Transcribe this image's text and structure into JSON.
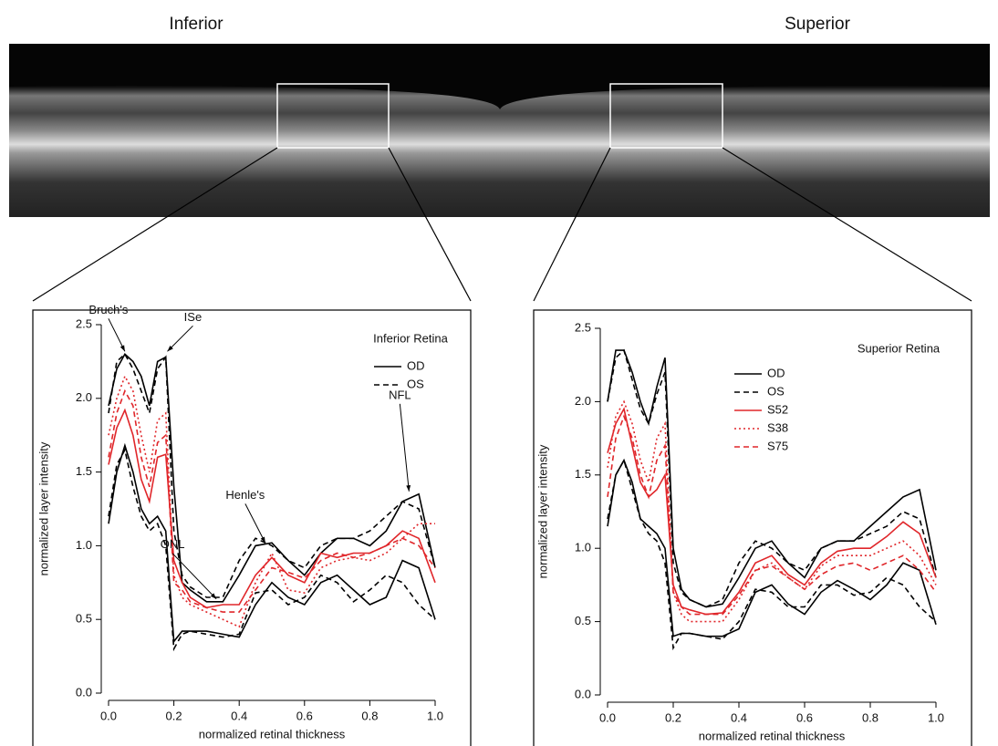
{
  "labels": {
    "left": "Inferior",
    "right": "Superior"
  },
  "chart_data": [
    {
      "type": "line",
      "panel_label": "Inferior Retina",
      "x_label": "normalized retinal thickness",
      "y_label": "normalized layer intensity",
      "x": [
        0,
        0.025,
        0.05,
        0.075,
        0.1,
        0.125,
        0.15,
        0.175,
        0.2,
        0.225,
        0.25,
        0.3,
        0.35,
        0.4,
        0.45,
        0.5,
        0.55,
        0.6,
        0.65,
        0.7,
        0.75,
        0.8,
        0.85,
        0.9,
        0.95,
        1.0
      ],
      "xlim": [
        0,
        1
      ],
      "ylim": [
        0,
        2.5
      ],
      "xticks": [
        {
          "value": 0,
          "label": "0.0"
        },
        0.2,
        0.4,
        0.6,
        0.8,
        {
          "value": 1,
          "label": "1.0"
        }
      ],
      "yticks": [
        {
          "value": 0,
          "label": "0.0"
        },
        0.5,
        {
          "value": 1,
          "label": "1.0"
        },
        1.5,
        {
          "value": 2,
          "label": "2.0"
        },
        2.5
      ],
      "series": [
        {
          "name": "OD",
          "color": "#000000",
          "dash": "solid",
          "values": [
            1.95,
            2.2,
            2.3,
            2.25,
            2.15,
            1.95,
            2.25,
            2.28,
            1.4,
            0.75,
            0.7,
            0.62,
            0.62,
            0.8,
            1.0,
            1.02,
            0.9,
            0.8,
            0.95,
            1.05,
            1.05,
            1.0,
            1.1,
            1.3,
            1.35,
            0.85
          ],
          "lower": [
            1.15,
            1.5,
            1.68,
            1.5,
            1.25,
            1.15,
            1.2,
            1.1,
            0.35,
            0.42,
            0.42,
            0.42,
            0.4,
            0.38,
            0.6,
            0.75,
            0.65,
            0.6,
            0.75,
            0.8,
            0.7,
            0.6,
            0.65,
            0.9,
            0.85,
            0.5
          ]
        },
        {
          "name": "OS",
          "color": "#000000",
          "dash": "dashed",
          "values": [
            1.9,
            2.25,
            2.3,
            2.2,
            2.05,
            1.9,
            2.2,
            2.28,
            1.1,
            0.8,
            0.72,
            0.65,
            0.65,
            0.9,
            1.05,
            1.0,
            0.9,
            0.85,
            1.0,
            1.05,
            1.05,
            1.1,
            1.2,
            1.3,
            1.25,
            0.85
          ],
          "lower": [
            1.2,
            1.55,
            1.65,
            1.4,
            1.2,
            1.1,
            1.15,
            1.0,
            0.3,
            0.4,
            0.42,
            0.4,
            0.38,
            0.4,
            0.68,
            0.7,
            0.6,
            0.65,
            0.8,
            0.75,
            0.62,
            0.7,
            0.8,
            0.75,
            0.6,
            0.5
          ]
        },
        {
          "color": "#e0262a",
          "dash": "solid",
          "values": [
            1.55,
            1.8,
            1.92,
            1.75,
            1.45,
            1.3,
            1.6,
            1.62,
            0.9,
            0.75,
            0.65,
            0.58,
            0.6,
            0.6,
            0.8,
            0.92,
            0.8,
            0.75,
            0.95,
            0.92,
            0.95,
            0.95,
            1.0,
            1.1,
            1.05,
            0.75
          ]
        },
        {
          "color": "#e0262a",
          "dash": "dotted",
          "values": [
            1.75,
            2.0,
            2.15,
            2.05,
            1.75,
            1.5,
            1.85,
            1.9,
            0.8,
            0.65,
            0.6,
            0.55,
            0.5,
            0.45,
            0.75,
            0.95,
            0.7,
            0.68,
            0.85,
            0.9,
            0.92,
            0.9,
            0.95,
            1.05,
            1.15,
            1.15
          ]
        },
        {
          "color": "#e0262a",
          "dash": "dashed",
          "values": [
            1.6,
            1.9,
            2.05,
            1.95,
            1.6,
            1.4,
            1.7,
            1.75,
            0.75,
            0.7,
            0.62,
            0.58,
            0.55,
            0.55,
            0.7,
            0.85,
            0.82,
            0.78,
            0.9,
            0.95,
            0.92,
            0.95,
            1.0,
            1.05,
            1.0,
            0.85
          ]
        }
      ],
      "annotations": [
        {
          "text": "Bruch's",
          "x": 0.05,
          "y": 2.3
        },
        {
          "text": "ISe",
          "x": 0.18,
          "y": 2.3
        },
        {
          "text": "ONL",
          "x": 0.33,
          "y": 0.62
        },
        {
          "text": "Henle's",
          "x": 0.48,
          "y": 1.0
        },
        {
          "text": "NFL",
          "x": 0.92,
          "y": 1.35
        }
      ]
    },
    {
      "type": "line",
      "panel_label": "Superior Retina",
      "x_label": "normalized retinal thickness",
      "y_label": "normalized layer intensity",
      "x": [
        0,
        0.025,
        0.05,
        0.075,
        0.1,
        0.125,
        0.15,
        0.175,
        0.2,
        0.225,
        0.25,
        0.3,
        0.35,
        0.4,
        0.45,
        0.5,
        0.55,
        0.6,
        0.65,
        0.7,
        0.75,
        0.8,
        0.85,
        0.9,
        0.95,
        1.0
      ],
      "xlim": [
        0,
        1
      ],
      "ylim": [
        0,
        2.5
      ],
      "xticks": [
        {
          "value": 0,
          "label": "0.0"
        },
        0.2,
        0.4,
        0.6,
        0.8,
        {
          "value": 1,
          "label": "1.0"
        }
      ],
      "yticks": [
        {
          "value": 0,
          "label": "0.0"
        },
        0.5,
        {
          "value": 1,
          "label": "1.0"
        },
        1.5,
        {
          "value": 2,
          "label": "2.0"
        },
        2.5
      ],
      "series": [
        {
          "name": "OD",
          "color": "#000000",
          "dash": "solid",
          "values": [
            2.0,
            2.35,
            2.35,
            2.2,
            2.0,
            1.85,
            2.1,
            2.3,
            1.0,
            0.72,
            0.65,
            0.6,
            0.62,
            0.8,
            1.0,
            1.05,
            0.9,
            0.8,
            1.0,
            1.05,
            1.05,
            1.15,
            1.25,
            1.35,
            1.4,
            0.85
          ],
          "lower": [
            1.15,
            1.5,
            1.6,
            1.45,
            1.2,
            1.15,
            1.1,
            1.0,
            0.4,
            0.42,
            0.42,
            0.4,
            0.4,
            0.45,
            0.7,
            0.75,
            0.62,
            0.55,
            0.7,
            0.78,
            0.72,
            0.65,
            0.75,
            0.9,
            0.85,
            0.48
          ]
        },
        {
          "name": "OS",
          "color": "#000000",
          "dash": "dashed",
          "values": [
            2.0,
            2.3,
            2.35,
            2.15,
            1.95,
            1.85,
            2.05,
            2.2,
            0.9,
            0.7,
            0.65,
            0.6,
            0.65,
            0.9,
            1.05,
            1.0,
            0.9,
            0.85,
            1.0,
            1.05,
            1.05,
            1.1,
            1.15,
            1.25,
            1.2,
            0.8
          ],
          "lower": [
            1.2,
            1.5,
            1.6,
            1.4,
            1.2,
            1.1,
            1.05,
            0.9,
            0.32,
            0.42,
            0.42,
            0.4,
            0.38,
            0.5,
            0.72,
            0.7,
            0.6,
            0.6,
            0.75,
            0.75,
            0.68,
            0.7,
            0.8,
            0.75,
            0.6,
            0.5
          ]
        },
        {
          "name": "S52",
          "color": "#e0262a",
          "dash": "solid",
          "values": [
            1.65,
            1.85,
            1.95,
            1.7,
            1.45,
            1.35,
            1.4,
            1.5,
            0.75,
            0.6,
            0.58,
            0.55,
            0.56,
            0.7,
            0.9,
            0.95,
            0.82,
            0.75,
            0.9,
            0.98,
            1.0,
            1.0,
            1.08,
            1.18,
            1.1,
            0.8
          ]
        },
        {
          "name": "S38",
          "color": "#e0262a",
          "dash": "dotted",
          "values": [
            1.55,
            1.9,
            2.0,
            1.85,
            1.6,
            1.45,
            1.75,
            1.85,
            0.7,
            0.55,
            0.5,
            0.5,
            0.5,
            0.65,
            0.85,
            0.9,
            0.8,
            0.72,
            0.88,
            0.95,
            0.95,
            0.95,
            1.0,
            1.05,
            0.95,
            0.75
          ]
        },
        {
          "name": "S75",
          "color": "#e0262a",
          "dash": "dashed",
          "values": [
            1.35,
            1.75,
            1.9,
            1.75,
            1.5,
            1.35,
            1.6,
            1.7,
            0.7,
            0.6,
            0.55,
            0.55,
            0.55,
            0.68,
            0.85,
            0.88,
            0.8,
            0.72,
            0.82,
            0.88,
            0.9,
            0.85,
            0.9,
            0.95,
            0.85,
            0.7
          ]
        }
      ]
    }
  ]
}
